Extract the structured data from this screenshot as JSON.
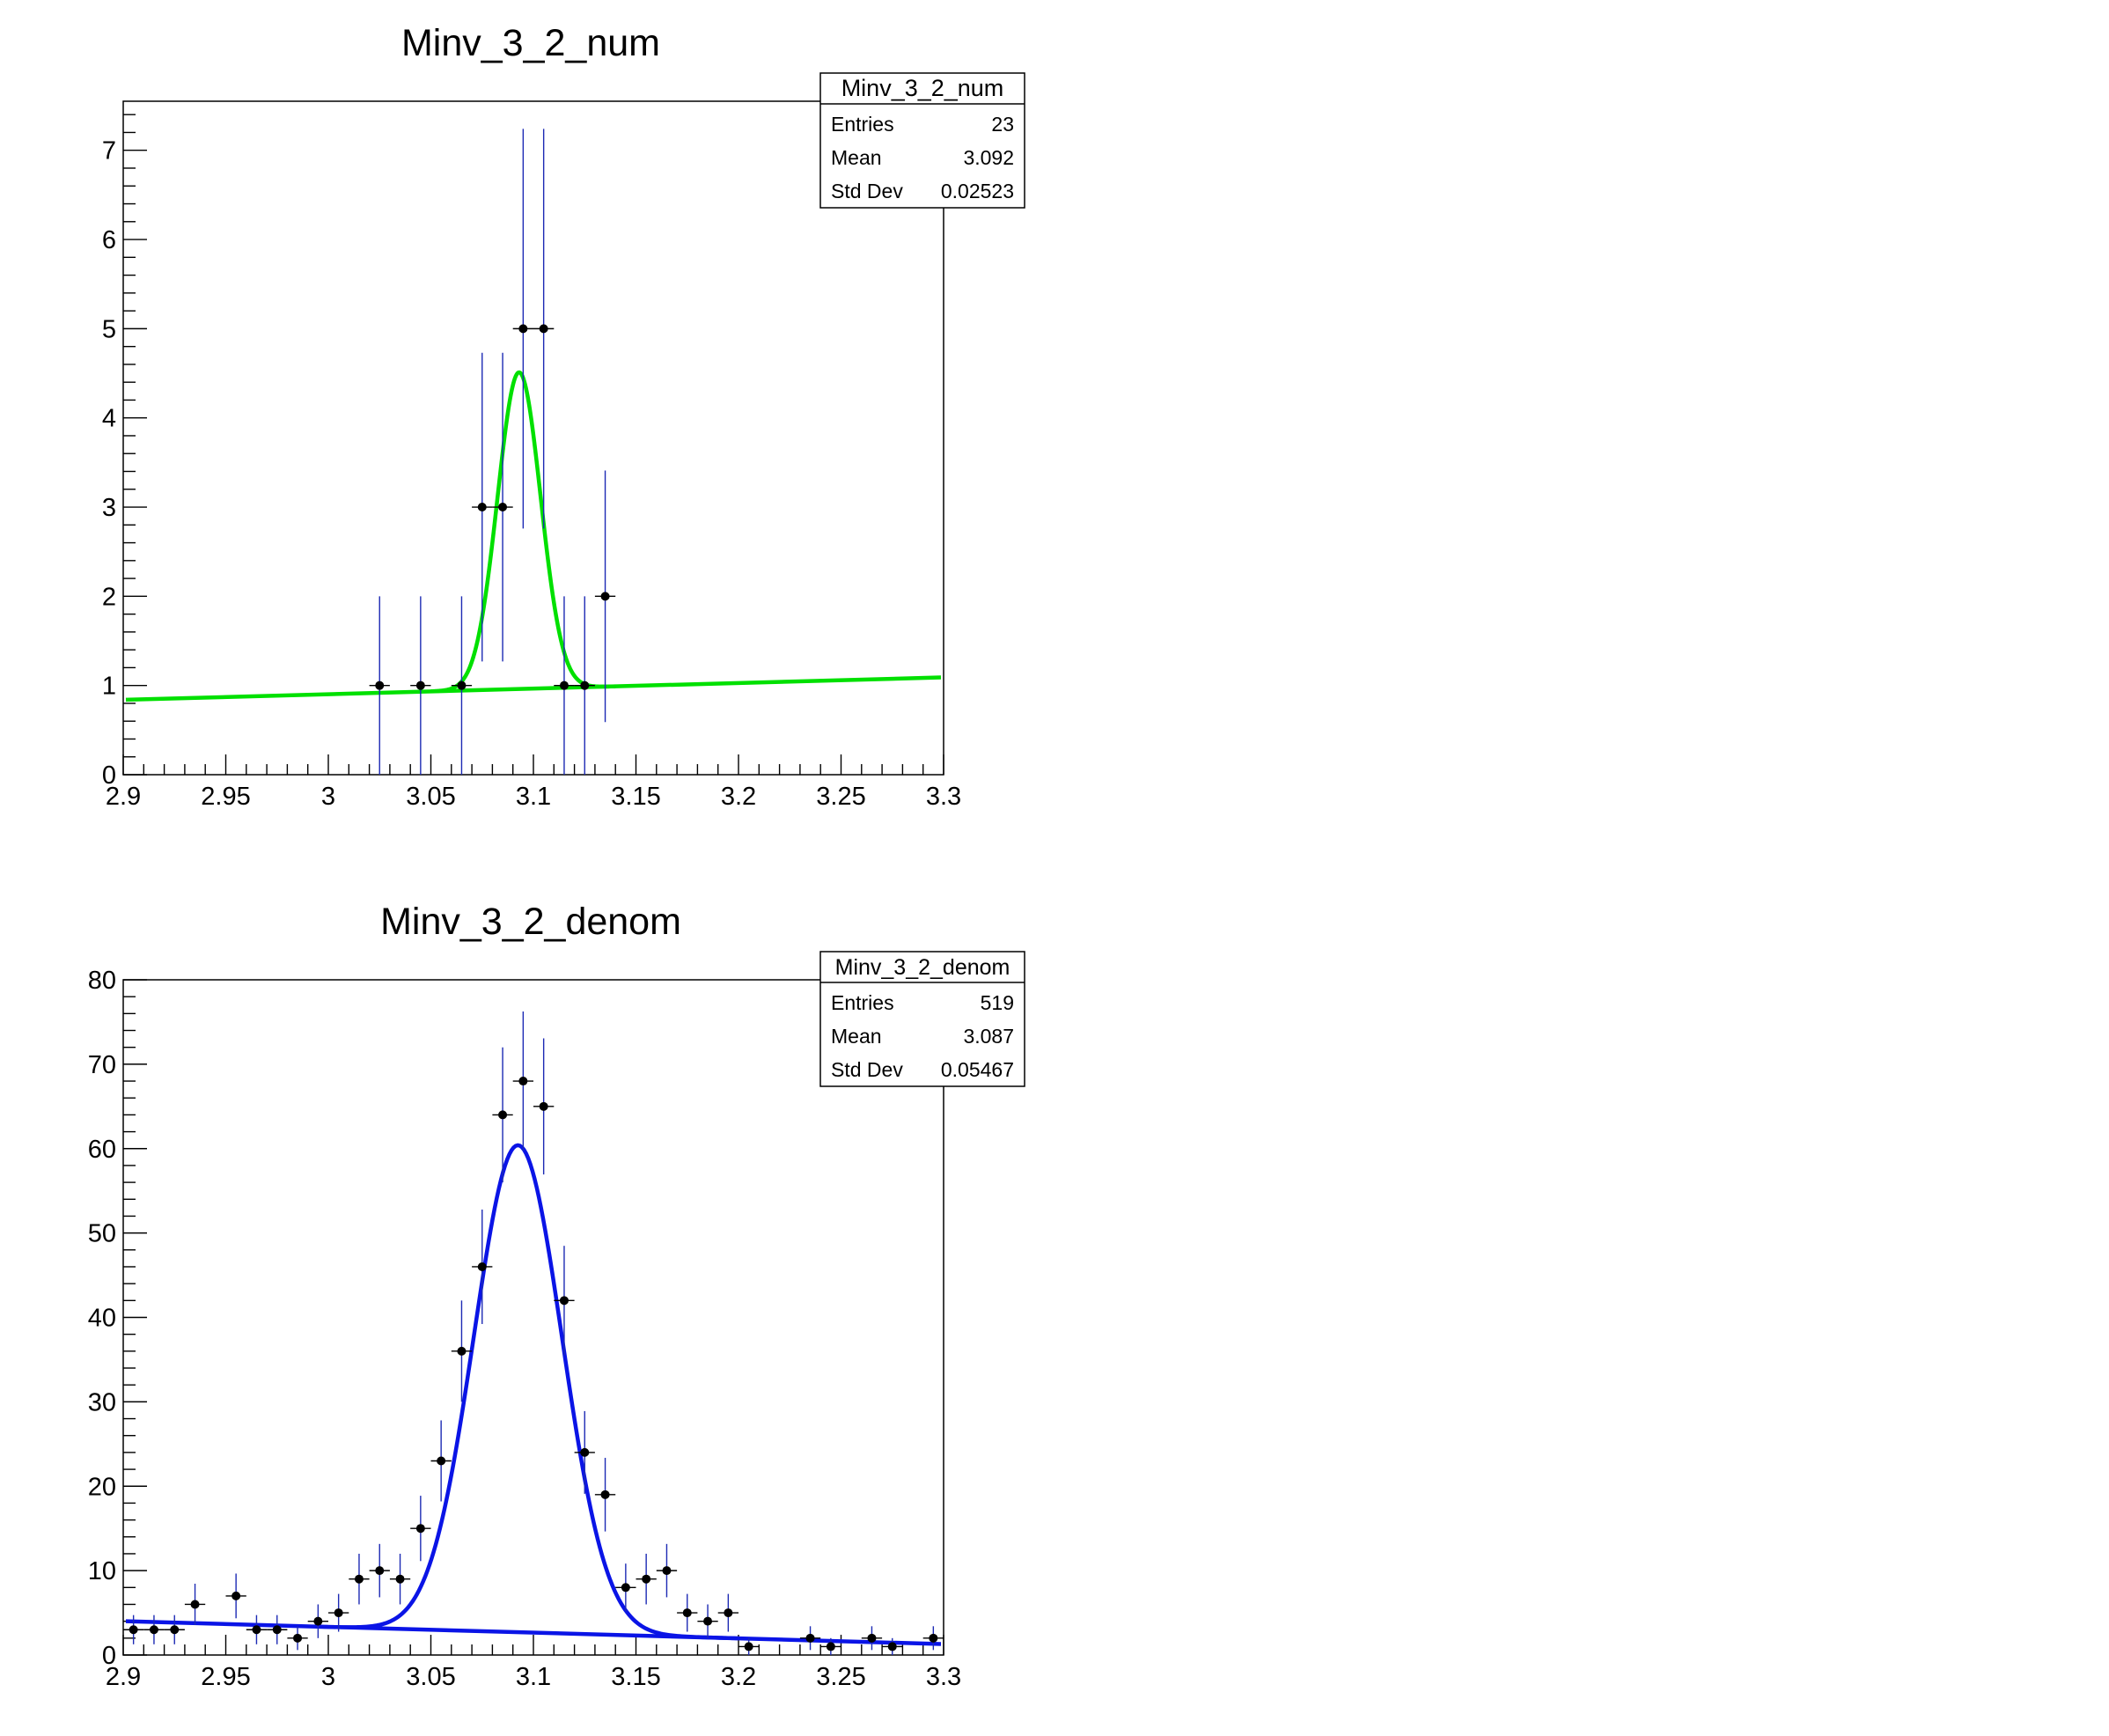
{
  "chart_data": [
    {
      "type": "scatter",
      "title": "Minv_3_2_num",
      "xlabel": "",
      "ylabel": "",
      "xlim": [
        2.9,
        3.3
      ],
      "ylim": [
        0,
        7.55
      ],
      "x_ticks": [
        "2.9",
        "2.95",
        "3",
        "3.05",
        "3.1",
        "3.15",
        "3.2",
        "3.25",
        "3.3"
      ],
      "y_ticks": [
        "0",
        "1",
        "2",
        "3",
        "4",
        "5",
        "6",
        "7"
      ],
      "stats": {
        "name": "Minv_3_2_num",
        "rows": [
          {
            "label": "Entries",
            "value": "23"
          },
          {
            "label": "Mean",
            "value": "3.092"
          },
          {
            "label": "Std Dev",
            "value": "0.02523"
          }
        ]
      },
      "bin_width": 0.01,
      "points": [
        {
          "x": 3.025,
          "y": 1,
          "err": 1
        },
        {
          "x": 3.045,
          "y": 1,
          "err": 1
        },
        {
          "x": 3.065,
          "y": 1,
          "err": 1
        },
        {
          "x": 3.075,
          "y": 3,
          "err": 1.73
        },
        {
          "x": 3.085,
          "y": 3,
          "err": 1.73
        },
        {
          "x": 3.095,
          "y": 5,
          "err": 2.24
        },
        {
          "x": 3.105,
          "y": 5,
          "err": 2.24
        },
        {
          "x": 3.115,
          "y": 1,
          "err": 1
        },
        {
          "x": 3.125,
          "y": 1,
          "err": 1
        },
        {
          "x": 3.135,
          "y": 2,
          "err": 1.41
        }
      ],
      "fit": {
        "color": "#00e000",
        "gauss": {
          "amplitude": 3.55,
          "mean": 3.093,
          "sigma": 0.0105
        },
        "background": {
          "x_start": 2.9,
          "x_end": 3.3,
          "y_start": 0.84,
          "y_end": 1.09
        },
        "signal_range": [
          3.05,
          3.14
        ]
      },
      "error_bar_color": "#1c2ab4",
      "marker_color": "#000000"
    },
    {
      "type": "scatter",
      "title": "Minv_3_2_denom",
      "xlabel": "",
      "ylabel": "",
      "xlim": [
        2.9,
        3.3
      ],
      "ylim": [
        0,
        80
      ],
      "x_ticks": [
        "2.9",
        "2.95",
        "3",
        "3.05",
        "3.1",
        "3.15",
        "3.2",
        "3.25",
        "3.3"
      ],
      "y_ticks": [
        "0",
        "10",
        "20",
        "30",
        "40",
        "50",
        "60",
        "70",
        "80"
      ],
      "stats": {
        "name": "Minv_3_2_denom",
        "rows": [
          {
            "label": "Entries",
            "value": "519"
          },
          {
            "label": "Mean",
            "value": "3.087"
          },
          {
            "label": "Std Dev",
            "value": "0.05467"
          }
        ]
      },
      "bin_width": 0.01,
      "points": [
        {
          "x": 2.905,
          "y": 3,
          "err": 1.73
        },
        {
          "x": 2.915,
          "y": 3,
          "err": 1.73
        },
        {
          "x": 2.925,
          "y": 3,
          "err": 1.73
        },
        {
          "x": 2.935,
          "y": 6,
          "err": 2.45
        },
        {
          "x": 2.955,
          "y": 7,
          "err": 2.65
        },
        {
          "x": 2.965,
          "y": 3,
          "err": 1.73
        },
        {
          "x": 2.975,
          "y": 3,
          "err": 1.73
        },
        {
          "x": 2.985,
          "y": 2,
          "err": 1.41
        },
        {
          "x": 2.995,
          "y": 4,
          "err": 2
        },
        {
          "x": 3.005,
          "y": 5,
          "err": 2.24
        },
        {
          "x": 3.015,
          "y": 9,
          "err": 3
        },
        {
          "x": 3.025,
          "y": 10,
          "err": 3.16
        },
        {
          "x": 3.035,
          "y": 9,
          "err": 3
        },
        {
          "x": 3.045,
          "y": 15,
          "err": 3.87
        },
        {
          "x": 3.055,
          "y": 23,
          "err": 4.8
        },
        {
          "x": 3.065,
          "y": 36,
          "err": 6
        },
        {
          "x": 3.075,
          "y": 46,
          "err": 6.78
        },
        {
          "x": 3.085,
          "y": 64,
          "err": 8
        },
        {
          "x": 3.095,
          "y": 68,
          "err": 8.25
        },
        {
          "x": 3.105,
          "y": 65,
          "err": 8.06
        },
        {
          "x": 3.115,
          "y": 42,
          "err": 6.48
        },
        {
          "x": 3.125,
          "y": 24,
          "err": 4.9
        },
        {
          "x": 3.135,
          "y": 19,
          "err": 4.36
        },
        {
          "x": 3.145,
          "y": 8,
          "err": 2.83
        },
        {
          "x": 3.155,
          "y": 9,
          "err": 3
        },
        {
          "x": 3.165,
          "y": 10,
          "err": 3.16
        },
        {
          "x": 3.175,
          "y": 5,
          "err": 2.24
        },
        {
          "x": 3.185,
          "y": 4,
          "err": 2
        },
        {
          "x": 3.195,
          "y": 5,
          "err": 2.24
        },
        {
          "x": 3.205,
          "y": 1,
          "err": 1
        },
        {
          "x": 3.235,
          "y": 2,
          "err": 1.41
        },
        {
          "x": 3.245,
          "y": 1,
          "err": 1
        },
        {
          "x": 3.265,
          "y": 2,
          "err": 1.41
        },
        {
          "x": 3.275,
          "y": 1,
          "err": 1
        },
        {
          "x": 3.295,
          "y": 2,
          "err": 1.41
        }
      ],
      "fit": {
        "color": "#0a14e6",
        "gauss": {
          "amplitude": 57.7,
          "mean": 3.0925,
          "sigma": 0.0215
        },
        "background": {
          "x_start": 2.9,
          "x_end": 3.3,
          "y_start": 4.0,
          "y_end": 1.3
        },
        "signal_range": [
          2.995,
          3.2
        ]
      },
      "error_bar_color": "#1c2ab4",
      "marker_color": "#000000"
    }
  ]
}
